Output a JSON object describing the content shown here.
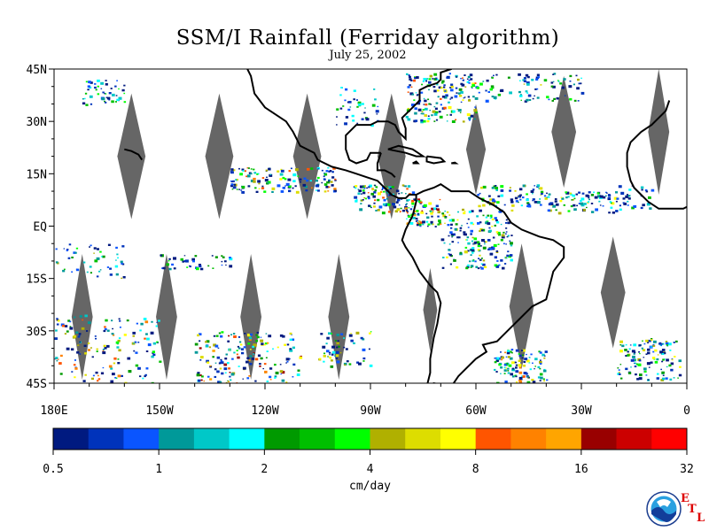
{
  "title": "SSM/I Rainfall (Ferriday algorithm)",
  "subtitle": "July 25, 2002",
  "map": {
    "lat_labels": [
      "45N",
      "30N",
      "15N",
      "EQ",
      "15S",
      "30S",
      "45S"
    ],
    "lat_values": [
      45,
      30,
      15,
      0,
      -15,
      -30,
      -45
    ],
    "lon_labels": [
      "180E",
      "150W",
      "120W",
      "90W",
      "60W",
      "30W",
      "0"
    ],
    "lon_values": [
      -180,
      -150,
      -120,
      -90,
      -60,
      -30,
      0
    ],
    "extent": {
      "lon_min": -180,
      "lon_max": 0,
      "lat_min": -45,
      "lat_max": 45
    },
    "coastline_color": "#000000",
    "gap_color": "#666666"
  },
  "colorbar": {
    "colors": [
      "#001a80",
      "#0033bb",
      "#0a55ff",
      "#009999",
      "#00c8c8",
      "#00ffff",
      "#009a00",
      "#00bf00",
      "#00ff00",
      "#b0b000",
      "#dddd00",
      "#ffff00",
      "#ff5500",
      "#ff8200",
      "#ffa500",
      "#990000",
      "#cc0000",
      "#ff0000"
    ],
    "labels": [
      "0.5",
      "1",
      "2",
      "4",
      "8",
      "16",
      "32"
    ],
    "unit": "cm/day"
  },
  "logo": {
    "name": "NOAA",
    "etl": [
      "E",
      "T",
      "L"
    ]
  }
}
